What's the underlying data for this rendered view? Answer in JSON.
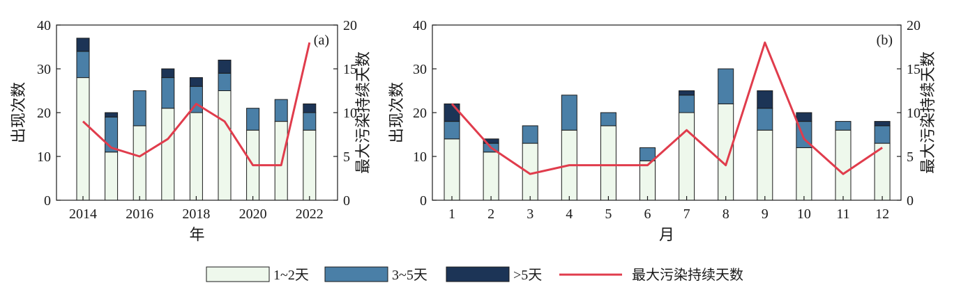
{
  "chart_data": [
    {
      "type": "bar",
      "panel_label": "(a)",
      "categories": [
        "2014",
        "2015",
        "2016",
        "2017",
        "2018",
        "2019",
        "2020",
        "2021",
        "2022"
      ],
      "x_tick_labels": [
        "2014",
        "2016",
        "2018",
        "2020",
        "2022"
      ],
      "x_tick_categories": [
        "2014",
        "2016",
        "2018",
        "2020",
        "2022"
      ],
      "xlabel": "年",
      "ylabel": "出现次数",
      "y2label": "最大污染持续天数",
      "ylim": [
        0,
        40
      ],
      "y2lim": [
        0,
        20
      ],
      "yticks": [
        0,
        10,
        20,
        30,
        40
      ],
      "y2ticks": [
        0,
        5,
        10,
        15,
        20
      ],
      "stacked": true,
      "series": [
        {
          "name": "1~2天",
          "values": [
            28,
            11,
            17,
            21,
            20,
            25,
            16,
            18,
            16
          ]
        },
        {
          "name": "3~5天",
          "values": [
            6,
            8,
            8,
            7,
            6,
            4,
            5,
            5,
            4
          ]
        },
        {
          "name": ">5天",
          "values": [
            3,
            1,
            0,
            2,
            2,
            3,
            0,
            0,
            2
          ]
        }
      ],
      "line": {
        "name": "最大污染持续天数",
        "axis": "right",
        "values": [
          9,
          6,
          5,
          7,
          11,
          9,
          4,
          4,
          18
        ]
      },
      "grid": false
    },
    {
      "type": "bar",
      "panel_label": "(b)",
      "categories": [
        "1",
        "2",
        "3",
        "4",
        "5",
        "6",
        "7",
        "8",
        "9",
        "10",
        "11",
        "12"
      ],
      "x_tick_labels": [
        "1",
        "2",
        "3",
        "4",
        "5",
        "6",
        "7",
        "8",
        "9",
        "10",
        "11",
        "12"
      ],
      "x_tick_categories": [
        "1",
        "2",
        "3",
        "4",
        "5",
        "6",
        "7",
        "8",
        "9",
        "10",
        "11",
        "12"
      ],
      "xlabel": "月",
      "ylabel": "出现次数",
      "y2label": "最大污染持续天数",
      "ylim": [
        0,
        40
      ],
      "y2lim": [
        0,
        20
      ],
      "yticks": [
        0,
        10,
        20,
        30,
        40
      ],
      "y2ticks": [
        0,
        5,
        10,
        15,
        20
      ],
      "stacked": true,
      "series": [
        {
          "name": "1~2天",
          "values": [
            14,
            11,
            13,
            16,
            17,
            9,
            20,
            22,
            16,
            12,
            16,
            13
          ]
        },
        {
          "name": "3~5天",
          "values": [
            4,
            2,
            4,
            8,
            3,
            3,
            4,
            8,
            5,
            6,
            2,
            4
          ]
        },
        {
          "name": ">5天",
          "values": [
            4,
            1,
            0,
            0,
            0,
            0,
            1,
            0,
            4,
            2,
            0,
            1
          ]
        }
      ],
      "line": {
        "name": "最大污染持续天数",
        "axis": "right",
        "values": [
          11,
          6,
          3,
          4,
          4,
          4,
          8,
          4,
          18,
          7,
          3,
          6
        ]
      },
      "grid": false
    }
  ],
  "colors": {
    "1~2天": "#eef8ec",
    "3~5天": "#4a7fa7",
    ">5天": "#1c3456",
    "line": "#e03c4c",
    "axis": "#1a1a1a"
  },
  "legend": {
    "placement": "bottom-center",
    "items": [
      {
        "label": "1~2天",
        "kind": "bar",
        "color_key": "1~2天"
      },
      {
        "label": "3~5天",
        "kind": "bar",
        "color_key": "3~5天"
      },
      {
        "label": ">5天",
        "kind": "bar",
        "color_key": ">5天"
      },
      {
        "label": "最大污染持续天数",
        "kind": "line",
        "color_key": "line"
      }
    ]
  }
}
